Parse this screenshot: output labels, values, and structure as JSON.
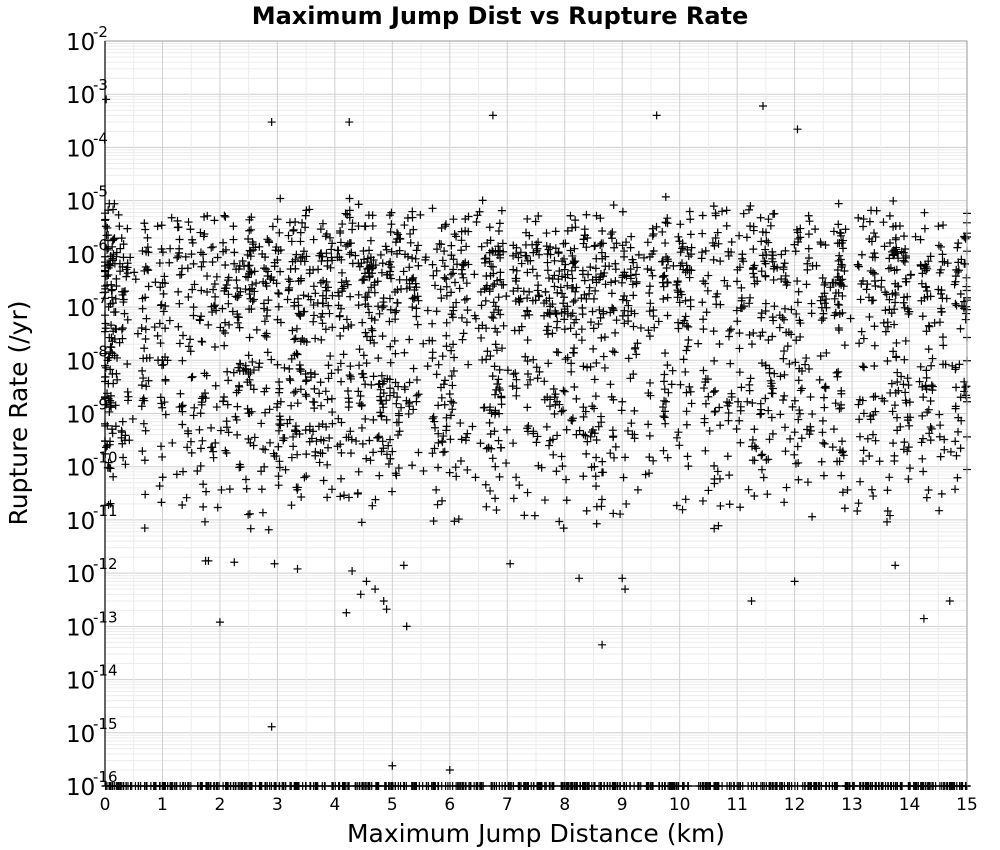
{
  "chart_data": {
    "type": "scatter",
    "title": "Maximum Jump Dist vs Rupture Rate",
    "xlabel": "Maximum Jump Distance (km)",
    "ylabel": "Rupture Rate (/yr)",
    "xlim": [
      0,
      15
    ],
    "ylim": [
      1e-16,
      0.01
    ],
    "y_scale": "log",
    "grid": true,
    "marker": "plus",
    "marker_color": "#000000",
    "x_ticks": [
      "0",
      "1",
      "2",
      "3",
      "4",
      "5",
      "6",
      "7",
      "8",
      "9",
      "10",
      "11",
      "12",
      "13",
      "14",
      "15"
    ],
    "y_ticks": [
      {
        "base": "10",
        "exp": "-2"
      },
      {
        "base": "10",
        "exp": "-3"
      },
      {
        "base": "10",
        "exp": "-4"
      },
      {
        "base": "10",
        "exp": "-5"
      },
      {
        "base": "10",
        "exp": "-6"
      },
      {
        "base": "10",
        "exp": "-7"
      },
      {
        "base": "10",
        "exp": "-8"
      },
      {
        "base": "10",
        "exp": "-9"
      },
      {
        "base": "10",
        "exp": "-10"
      },
      {
        "base": "10",
        "exp": "-11"
      },
      {
        "base": "10",
        "exp": "-12"
      },
      {
        "base": "10",
        "exp": "-13"
      },
      {
        "base": "10",
        "exp": "-14"
      },
      {
        "base": "10",
        "exp": "-15"
      },
      {
        "base": "10",
        "exp": "-16"
      }
    ],
    "cluster_x": [
      0.0,
      0.05,
      0.1,
      0.15,
      0.25,
      0.35,
      0.7,
      1.0,
      1.3,
      1.5,
      1.7,
      1.9,
      2.1,
      2.3,
      2.5,
      2.55,
      2.8,
      3.0,
      3.25,
      3.35,
      3.45,
      3.6,
      3.75,
      3.9,
      4.1,
      4.25,
      4.45,
      4.55,
      4.65,
      4.8,
      4.95,
      5.1,
      5.25,
      5.4,
      5.75,
      5.9,
      6.05,
      6.25,
      6.65,
      6.75,
      6.85,
      7.15,
      7.35,
      7.5,
      7.7,
      7.85,
      8.0,
      8.15,
      8.35,
      8.5,
      8.65,
      8.85,
      9.05,
      9.2,
      9.5,
      9.75,
      10.0,
      10.15,
      10.45,
      10.65,
      10.85,
      11.05,
      11.25,
      11.45,
      11.6,
      11.8,
      12.05,
      12.25,
      12.5,
      12.75,
      12.8,
      13.15,
      13.35,
      13.6,
      13.75,
      13.95,
      14.25,
      14.35,
      14.55,
      14.85,
      15.0
    ],
    "series": [
      {
        "points": [
          [
            0.02,
            0.0008
          ],
          [
            2.9,
            0.0003
          ],
          [
            4.25,
            0.0003
          ],
          [
            6.75,
            0.0004
          ],
          [
            9.6,
            0.0004
          ],
          [
            11.45,
            0.0006
          ],
          [
            12.05,
            0.00022
          ],
          [
            2.95,
            1.5e-12
          ],
          [
            3.35,
            1.2e-12
          ],
          [
            4.3,
            1.1e-12
          ],
          [
            4.45,
            4e-13
          ],
          [
            4.55,
            7e-13
          ],
          [
            4.7,
            5e-13
          ],
          [
            4.85,
            3e-13
          ],
          [
            5.2,
            1.4e-12
          ],
          [
            7.05,
            1.5e-12
          ],
          [
            8.25,
            8e-13
          ],
          [
            9.0,
            8e-13
          ],
          [
            9.05,
            5e-13
          ],
          [
            12.0,
            7e-13
          ],
          [
            13.75,
            1.4e-12
          ],
          [
            1.75,
            1.7e-12
          ],
          [
            1.8,
            1.7e-12
          ],
          [
            2.25,
            1.6e-12
          ],
          [
            4.2,
            1.8e-13
          ],
          [
            4.9,
            2.1e-13
          ],
          [
            5.25,
            1e-13
          ],
          [
            2.0,
            1.2e-13
          ],
          [
            11.25,
            3e-13
          ],
          [
            14.25,
            1.4e-13
          ],
          [
            14.7,
            3e-13
          ],
          [
            8.65,
            4.5e-14
          ],
          [
            2.9,
            1.3e-15
          ],
          [
            5.0,
            2.4e-16
          ],
          [
            6.0,
            2e-16
          ]
        ]
      }
    ]
  }
}
